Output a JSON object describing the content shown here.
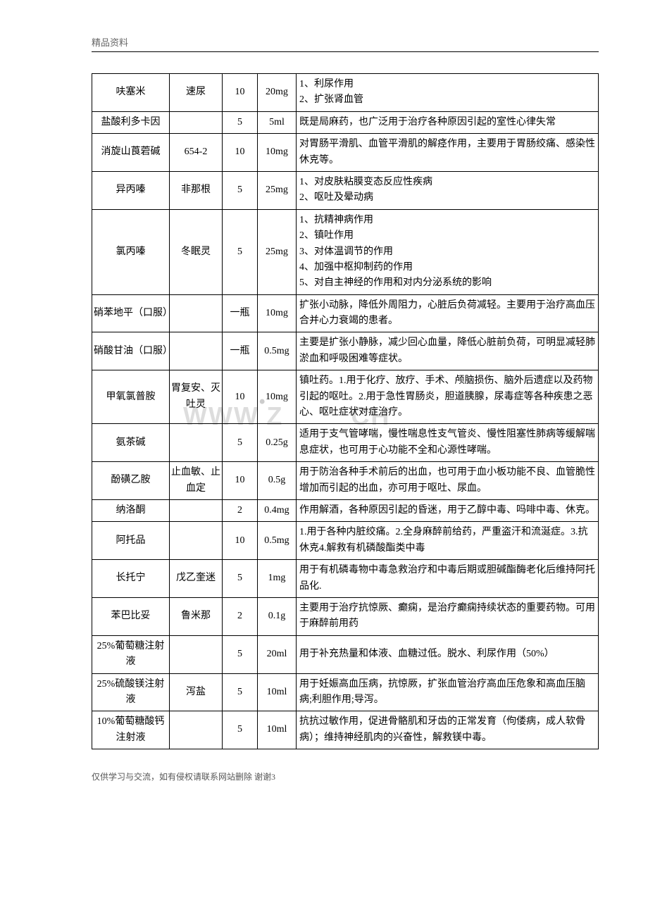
{
  "header_label": "精品资料",
  "watermark_text": "WWW.ZIHEZCH",
  "footer_text": "仅供学习与交流，如有侵权请联系网站删除 谢谢3",
  "table": {
    "rows": [
      {
        "name": "呋塞米",
        "alias": "速尿",
        "qty": "10",
        "spec": "20mg",
        "desc": "1、利尿作用\n2、扩张肾血管"
      },
      {
        "name": "盐酸利多卡因",
        "alias": "",
        "qty": "5",
        "spec": "5ml",
        "desc": "既是局麻药，也广泛用于治疗各种原因引起的室性心律失常"
      },
      {
        "name": "消旋山莨菪碱",
        "alias": "654-2",
        "qty": "10",
        "spec": "10mg",
        "desc": "对胃肠平滑肌、血管平滑肌的解痉作用，主要用于胃肠绞痛、感染性休克等。"
      },
      {
        "name": "异丙嗪",
        "alias": "非那根",
        "qty": "5",
        "spec": "25mg",
        "desc": "1、对皮肤粘膜变态反应性疾病\n2、呕吐及晕动病"
      },
      {
        "name": "氯丙嗪",
        "alias": "冬眠灵",
        "qty": "5",
        "spec": "25mg",
        "desc": "1、抗精神病作用\n2、镇吐作用\n3、对体温调节的作用\n4、加强中枢抑制药的作用\n5、对自主神经的作用和对内分泌系统的影响"
      },
      {
        "name": "硝苯地平（口服）",
        "alias": "",
        "qty": "一瓶",
        "spec": "10mg",
        "desc": "扩张小动脉，降低外周阻力，心脏后负荷减轻。主要用于治疗高血压合并心力衰竭的患者。"
      },
      {
        "name": "硝酸甘油（口服）",
        "alias": "",
        "qty": "一瓶",
        "spec": "0.5mg",
        "desc": "主要是扩张小静脉，减少回心血量，降低心脏前负荷，可明显减轻肺淤血和呼吸困难等症状。"
      },
      {
        "name": "甲氧氯普胺",
        "alias": "胃复安、灭吐灵",
        "qty": "10",
        "spec": "10mg",
        "desc": "镇吐药。1.用于化疗、放疗、手术、颅脑损伤、脑外后遗症以及药物引起的呕吐。2.用于急性胃肠炎，胆道胰腺，尿毒症等各种疾患之恶心、呕吐症状对症治疗。"
      },
      {
        "name": "氨茶碱",
        "alias": "",
        "qty": "5",
        "spec": "0.25g",
        "desc": "适用于支气管哮喘，慢性喘息性支气管炎、慢性阻塞性肺病等缓解喘息症状，也可用于心功能不全和心源性哮喘。"
      },
      {
        "name": "酚磺乙胺",
        "alias": "止血敏、止血定",
        "qty": "10",
        "spec": "0.5g",
        "desc": "用于防治各种手术前后的出血，也可用于血小板功能不良、血管脆性增加而引起的出血，亦可用于呕吐、尿血。"
      },
      {
        "name": "纳洛酮",
        "alias": "",
        "qty": "2",
        "spec": "0.4mg",
        "desc": "作用解酒，各种原因引起的昏迷，用于乙醇中毒、吗啡中毒、休克。"
      },
      {
        "name": "阿托品",
        "alias": "",
        "qty": "10",
        "spec": "0.5mg",
        "desc": "1.用于各种内脏绞痛。2.全身麻醉前给药，严重盗汗和流涎症。3.抗休克4.解救有机磷酸酯类中毒"
      },
      {
        "name": "长托宁",
        "alias": "戊乙奎迷",
        "qty": "5",
        "spec": "1mg",
        "desc": "用于有机磷毒物中毒急救治疗和中毒后期或胆碱酯酶老化后维持阿托品化."
      },
      {
        "name": "苯巴比妥",
        "alias": "鲁米那",
        "qty": "2",
        "spec": "0.1g",
        "desc": "主要用于治疗抗惊厥、癫痫，是治疗癫痫持续状态的重要药物。可用于麻醉前用药"
      },
      {
        "name": "25%葡萄糖注射液",
        "alias": "",
        "qty": "5",
        "spec": "20ml",
        "desc": "用于补充热量和体液、血糖过低。脱水、利尿作用（50%）"
      },
      {
        "name": "25%硫酸镁注射液",
        "alias": "泻盐",
        "qty": "5",
        "spec": "10ml",
        "desc": "用于妊娠高血压病，抗惊厥，扩张血管治疗高血压危象和高血压脑病;利胆作用;导泻。"
      },
      {
        "name": "10%葡萄糖酸钙注射液",
        "alias": "",
        "qty": "5",
        "spec": "10ml",
        "desc": "抗抗过敏作用，促进骨骼肌和牙齿的正常发育（佝偻病，成人软骨病）；维持神经肌肉的兴奋性，解救镁中毒。"
      }
    ]
  }
}
